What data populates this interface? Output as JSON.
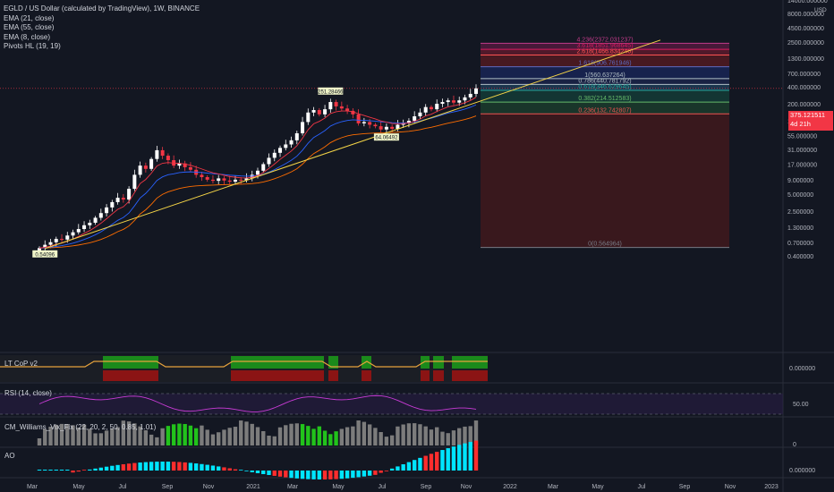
{
  "header": {
    "title": "EGLD / US Dollar (calculated by TradingView), 1W, BINANCE",
    "indicators": [
      "EMA (21, close)",
      "EMA (55, close)",
      "EMA (8, close)",
      "Pivots HL (19, 19)"
    ]
  },
  "price_axis": {
    "currency": "USD",
    "current_price": "375.121511",
    "countdown": "4d 21h"
  },
  "panes": {
    "ltcop": "LT CoP v2",
    "rsi": "RSI (14, close)",
    "williams": "CM_Williams_Vix_Fix (22, 20, 2, 50, 0.85, 1.01)",
    "ao": "AO"
  },
  "colors": {
    "up": "#ffffff",
    "down": "#f23645",
    "ema21": "#2962ff",
    "ema55": "#ff6d00",
    "ema8": "#f23645",
    "trend": "#f5d547",
    "rsi": "#c93bd6",
    "wvf_green": "#22c31b",
    "ao_up": "#00e5ff",
    "ao_down": "#ff2d2d"
  },
  "chart_data": {
    "type": "candlestick",
    "scale": "log",
    "ylim": [
      0.4,
      15000
    ],
    "y_ticks": [
      "14000.000000",
      "8000.000000",
      "4500.000000",
      "2500.000000",
      "1300.000000",
      "700.000000",
      "400.000000",
      "200.000000",
      "100.000000",
      "55.000000",
      "31.000000",
      "17.000000",
      "9.000000",
      "5.000000",
      "2.500000",
      "1.300000",
      "0.700000",
      "0.400000"
    ],
    "x_ticks": [
      "Mar",
      "May",
      "Jul",
      "Sep",
      "Nov",
      "2021",
      "Mar",
      "May",
      "Jul",
      "Sep",
      "Nov",
      "2022",
      "Mar",
      "May",
      "Jul",
      "Sep",
      "Nov",
      "2023"
    ],
    "close_prices": [
      0.55,
      0.63,
      0.7,
      0.8,
      0.78,
      0.92,
      1.05,
      1.2,
      1.4,
      1.55,
      1.9,
      2.3,
      2.9,
      3.6,
      4.3,
      4.0,
      6.2,
      11.0,
      16.0,
      14.0,
      21.0,
      30.0,
      24.0,
      20.0,
      16.0,
      17.5,
      15.0,
      13.5,
      11.0,
      10.0,
      9.0,
      8.6,
      9.5,
      8.7,
      8.3,
      9.0,
      8.8,
      9.5,
      11.0,
      13.0,
      17.0,
      22.0,
      27.0,
      33.0,
      38.0,
      45.0,
      60.0,
      95.0,
      140.0,
      155.0,
      130.0,
      160.0,
      215.0,
      180.0,
      165.0,
      150.0,
      130.0,
      90.0,
      95.0,
      85.0,
      80.0,
      70.0,
      78.0,
      72.0,
      85.0,
      90.0,
      100.0,
      120.0,
      140.0,
      175.0,
      160.0,
      200.0,
      215.0,
      230.0,
      210.0,
      230.0,
      260.0,
      300.0,
      375.12
    ],
    "pivots": [
      {
        "label": "251.28466"
      },
      {
        "label": "64.06492"
      },
      {
        "label": "0.54096"
      }
    ],
    "fib_levels": [
      {
        "label": "4.236(2372.031237)",
        "value": 2372.031237
      },
      {
        "label": "3.618(1851.968645)",
        "value": 1851.968645
      },
      {
        "label": "2.618(1466.834246)",
        "value": 1466.834246
      },
      {
        "label": "1.618(906.761946)",
        "value": 906.761946
      },
      {
        "label": "1(560.637264)",
        "value": 560.637264
      },
      {
        "label": "0.786(440.781792)",
        "value": 440.781792
      },
      {
        "label": "0.618(346.629645)",
        "value": 346.629645
      },
      {
        "label": "0.382(214.512583)",
        "value": 214.512583
      },
      {
        "label": "0.236(132.742807)",
        "value": 132.742807
      },
      {
        "label": "0(0.564964)",
        "value": 0.564964
      }
    ],
    "rsi": {
      "levels": [
        70,
        30
      ],
      "tick": "50.00"
    },
    "ao_tick": "0.000000",
    "wvf_tick": "0",
    "ltcop_tick": "0.000000"
  }
}
